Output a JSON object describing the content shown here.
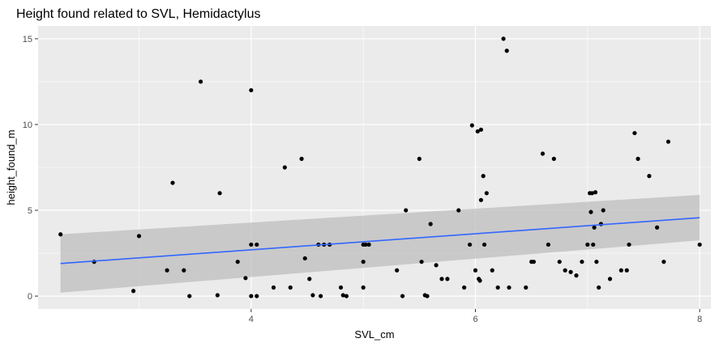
{
  "chart_data": {
    "type": "scatter",
    "title": "Height found related to SVL, Hemidactylus",
    "xlabel": "SVL_cm",
    "ylabel": "height_found_m",
    "xlim": [
      2.1,
      8.1
    ],
    "ylim": [
      -0.75,
      15.75
    ],
    "x_ticks": [
      4,
      6,
      8
    ],
    "y_ticks": [
      0,
      5,
      10,
      15
    ],
    "x_tick_labels": [
      "4",
      "6",
      "8"
    ],
    "y_tick_labels": [
      "0",
      "5",
      "10",
      "15"
    ],
    "grid": true,
    "legend": "none",
    "colors": {
      "panel": "#ebebeb",
      "grid": "#ffffff",
      "point": "#000000",
      "line": "#3366ff",
      "ribbon": "#bdbdbd"
    },
    "points": [
      [
        2.3,
        3.6
      ],
      [
        2.6,
        2.0
      ],
      [
        2.95,
        0.3
      ],
      [
        3.0,
        3.5
      ],
      [
        3.25,
        1.5
      ],
      [
        3.3,
        6.6
      ],
      [
        3.4,
        1.5
      ],
      [
        3.45,
        0.0
      ],
      [
        3.55,
        12.5
      ],
      [
        3.7,
        0.05
      ],
      [
        3.72,
        6.0
      ],
      [
        3.88,
        2.0
      ],
      [
        3.95,
        1.05
      ],
      [
        4.0,
        3.0
      ],
      [
        4.0,
        0.0
      ],
      [
        4.0,
        12.0
      ],
      [
        4.05,
        3.0
      ],
      [
        4.05,
        0.0
      ],
      [
        4.2,
        0.5
      ],
      [
        4.3,
        7.5
      ],
      [
        4.35,
        0.5
      ],
      [
        4.45,
        8.0
      ],
      [
        4.48,
        2.2
      ],
      [
        4.52,
        1.0
      ],
      [
        4.55,
        0.05
      ],
      [
        4.6,
        3.0
      ],
      [
        4.62,
        0.0
      ],
      [
        4.65,
        3.0
      ],
      [
        4.7,
        3.0
      ],
      [
        4.8,
        0.5
      ],
      [
        4.82,
        0.05
      ],
      [
        4.85,
        0.0
      ],
      [
        5.0,
        3.0
      ],
      [
        5.0,
        2.0
      ],
      [
        5.0,
        0.5
      ],
      [
        5.02,
        3.0
      ],
      [
        5.05,
        3.0
      ],
      [
        5.3,
        1.5
      ],
      [
        5.35,
        0.0
      ],
      [
        5.38,
        5.0
      ],
      [
        5.5,
        8.0
      ],
      [
        5.52,
        2.0
      ],
      [
        5.55,
        0.05
      ],
      [
        5.57,
        0.0
      ],
      [
        5.6,
        4.2
      ],
      [
        5.65,
        1.8
      ],
      [
        5.7,
        1.0
      ],
      [
        5.75,
        1.0
      ],
      [
        5.85,
        5.0
      ],
      [
        5.9,
        0.5
      ],
      [
        5.95,
        3.0
      ],
      [
        5.97,
        9.95
      ],
      [
        6.0,
        1.5
      ],
      [
        6.02,
        9.6
      ],
      [
        6.03,
        1.0
      ],
      [
        6.04,
        0.9
      ],
      [
        6.05,
        9.7
      ],
      [
        6.05,
        5.6
      ],
      [
        6.07,
        7.0
      ],
      [
        6.08,
        3.0
      ],
      [
        6.1,
        6.0
      ],
      [
        6.15,
        1.5
      ],
      [
        6.2,
        0.5
      ],
      [
        6.25,
        15.0
      ],
      [
        6.28,
        14.3
      ],
      [
        6.3,
        0.5
      ],
      [
        6.45,
        0.5
      ],
      [
        6.5,
        2.0
      ],
      [
        6.52,
        2.0
      ],
      [
        6.6,
        8.3
      ],
      [
        6.65,
        3.0
      ],
      [
        6.7,
        8.0
      ],
      [
        6.75,
        2.0
      ],
      [
        6.8,
        1.5
      ],
      [
        6.85,
        1.4
      ],
      [
        6.9,
        1.2
      ],
      [
        6.95,
        2.0
      ],
      [
        7.0,
        3.0
      ],
      [
        7.02,
        6.0
      ],
      [
        7.03,
        4.9
      ],
      [
        7.04,
        6.0
      ],
      [
        7.05,
        3.0
      ],
      [
        7.06,
        4.0
      ],
      [
        7.07,
        6.05
      ],
      [
        7.08,
        2.0
      ],
      [
        7.1,
        0.5
      ],
      [
        7.12,
        4.2
      ],
      [
        7.14,
        5.0
      ],
      [
        7.2,
        1.0
      ],
      [
        7.3,
        1.5
      ],
      [
        7.35,
        1.5
      ],
      [
        7.37,
        3.0
      ],
      [
        7.42,
        9.5
      ],
      [
        7.45,
        8.0
      ],
      [
        7.55,
        7.0
      ],
      [
        7.62,
        4.0
      ],
      [
        7.68,
        2.0
      ],
      [
        7.72,
        9.0
      ],
      [
        8.0,
        3.0
      ]
    ],
    "smooth": {
      "method": "lm",
      "x_range": [
        2.3,
        8.0
      ],
      "fit": [
        1.9,
        4.57
      ],
      "se_lower": [
        0.2,
        3.25
      ],
      "se_upper": [
        3.6,
        5.9
      ]
    }
  }
}
